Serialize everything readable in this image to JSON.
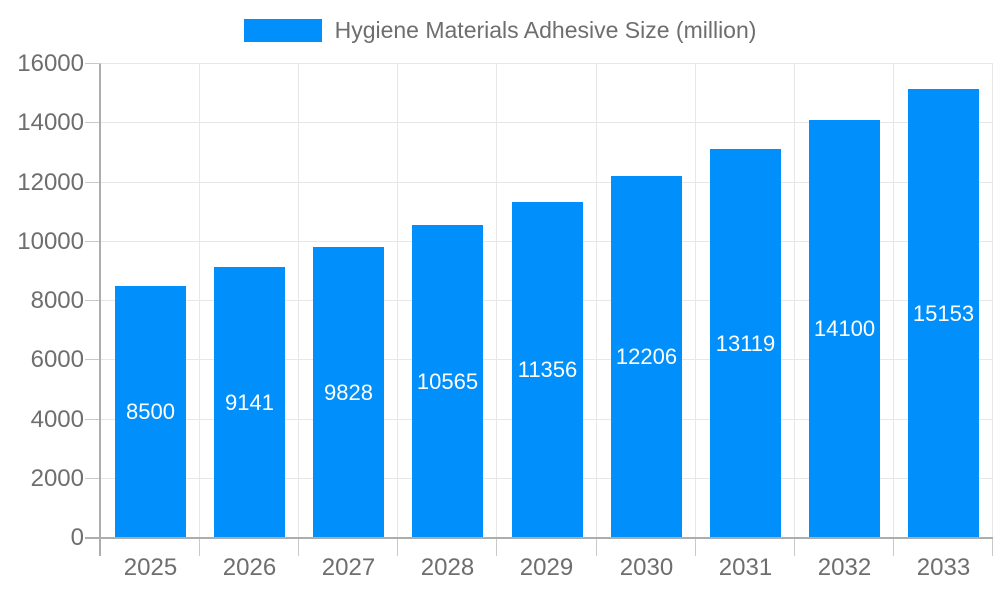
{
  "chart_data": {
    "type": "bar",
    "title": "Hygiene Materials Adhesive Size (million)",
    "legend_position": "top",
    "legend_entries": [
      "Hygiene Materials Adhesive Size (million)"
    ],
    "categories": [
      "2025",
      "2026",
      "2027",
      "2028",
      "2029",
      "2030",
      "2031",
      "2032",
      "2033"
    ],
    "series": [
      {
        "name": "Hygiene Materials Adhesive Size (million)",
        "values": [
          8500,
          9141,
          9828,
          10565,
          11356,
          12206,
          13119,
          14100,
          15153
        ]
      }
    ],
    "xlabel": "",
    "ylabel": "",
    "ylim": [
      0,
      16000
    ],
    "y_ticks": [
      0,
      2000,
      4000,
      6000,
      8000,
      10000,
      12000,
      14000,
      16000
    ],
    "grid": true,
    "bar_color": "#008FFB",
    "bar_label_color": "#FFFFFF",
    "axis_text_color": "#6E6E6E",
    "gridline_color": "#E7E7E7",
    "tick_color": "#C9C9C9",
    "axis_line_color": "#ADADAD",
    "background_color": "#FFFFFF"
  }
}
